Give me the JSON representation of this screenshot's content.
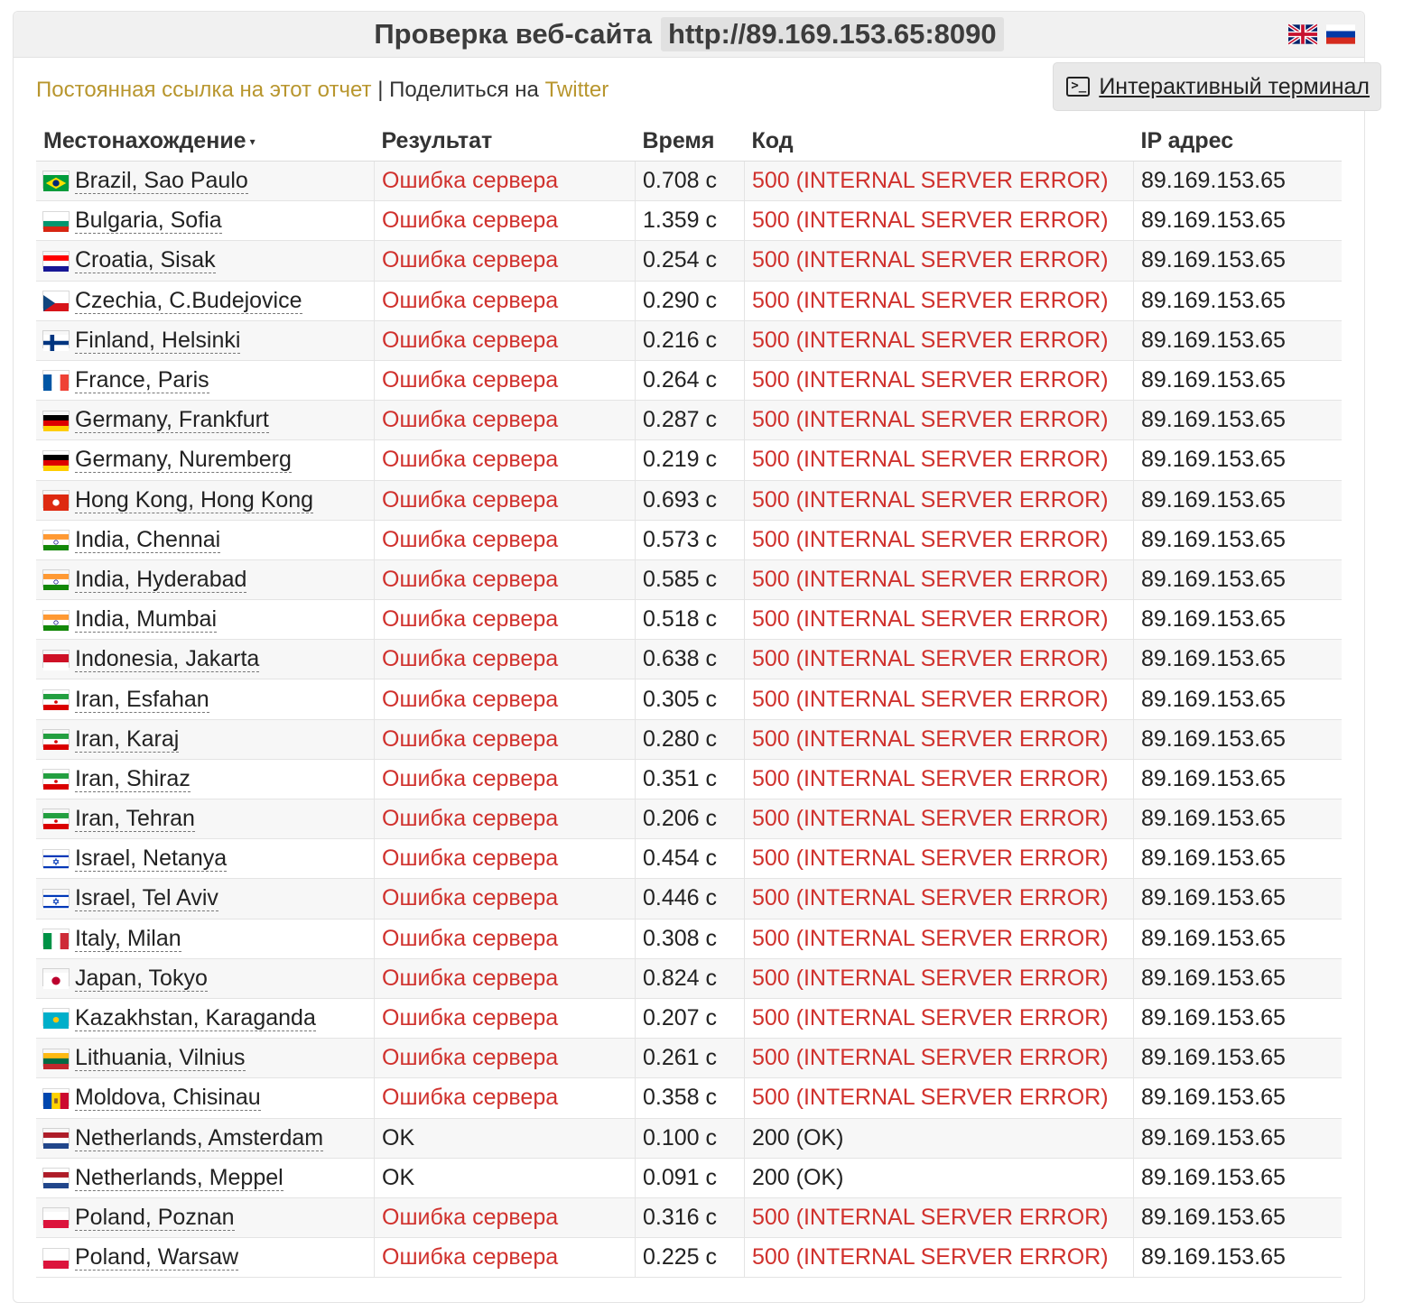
{
  "header": {
    "title": "Проверка веб-сайта",
    "url": "http://89.169.153.65:8090",
    "languages": [
      {
        "name": "English",
        "icon": "uk-flag-icon"
      },
      {
        "name": "Русский",
        "icon": "ru-flag-icon"
      }
    ]
  },
  "links": {
    "permalink": "Постоянная ссылка на этот отчет",
    "separator": " | ",
    "share_prefix": "Поделиться на ",
    "twitter": "Twitter"
  },
  "terminal_button": {
    "label": "Интерактивный терминал",
    "icon": "terminal-icon"
  },
  "table": {
    "columns": [
      "Местонахождение",
      "Результат",
      "Время",
      "Код",
      "IP адрес"
    ],
    "sort_indicator": "▾",
    "colors": {
      "error": "#d0312d",
      "ok": "#222222"
    },
    "rows": [
      {
        "location": "Brazil, Sao Paulo",
        "flag": "br",
        "result": "Ошибка сервера",
        "status": "error",
        "time": "0.708 с",
        "code": "500 (INTERNAL SERVER ERROR)",
        "ip": "89.169.153.65"
      },
      {
        "location": "Bulgaria, Sofia",
        "flag": "bg",
        "result": "Ошибка сервера",
        "status": "error",
        "time": "1.359 с",
        "code": "500 (INTERNAL SERVER ERROR)",
        "ip": "89.169.153.65"
      },
      {
        "location": "Croatia, Sisak",
        "flag": "hr",
        "result": "Ошибка сервера",
        "status": "error",
        "time": "0.254 с",
        "code": "500 (INTERNAL SERVER ERROR)",
        "ip": "89.169.153.65"
      },
      {
        "location": "Czechia, C.Budejovice",
        "flag": "cz",
        "result": "Ошибка сервера",
        "status": "error",
        "time": "0.290 с",
        "code": "500 (INTERNAL SERVER ERROR)",
        "ip": "89.169.153.65"
      },
      {
        "location": "Finland, Helsinki",
        "flag": "fi",
        "result": "Ошибка сервера",
        "status": "error",
        "time": "0.216 с",
        "code": "500 (INTERNAL SERVER ERROR)",
        "ip": "89.169.153.65"
      },
      {
        "location": "France, Paris",
        "flag": "fr",
        "result": "Ошибка сервера",
        "status": "error",
        "time": "0.264 с",
        "code": "500 (INTERNAL SERVER ERROR)",
        "ip": "89.169.153.65"
      },
      {
        "location": "Germany, Frankfurt",
        "flag": "de",
        "result": "Ошибка сервера",
        "status": "error",
        "time": "0.287 с",
        "code": "500 (INTERNAL SERVER ERROR)",
        "ip": "89.169.153.65"
      },
      {
        "location": "Germany, Nuremberg",
        "flag": "de",
        "result": "Ошибка сервера",
        "status": "error",
        "time": "0.219 с",
        "code": "500 (INTERNAL SERVER ERROR)",
        "ip": "89.169.153.65"
      },
      {
        "location": "Hong Kong, Hong Kong",
        "flag": "hk",
        "result": "Ошибка сервера",
        "status": "error",
        "time": "0.693 с",
        "code": "500 (INTERNAL SERVER ERROR)",
        "ip": "89.169.153.65"
      },
      {
        "location": "India, Chennai",
        "flag": "in",
        "result": "Ошибка сервера",
        "status": "error",
        "time": "0.573 с",
        "code": "500 (INTERNAL SERVER ERROR)",
        "ip": "89.169.153.65"
      },
      {
        "location": "India, Hyderabad",
        "flag": "in",
        "result": "Ошибка сервера",
        "status": "error",
        "time": "0.585 с",
        "code": "500 (INTERNAL SERVER ERROR)",
        "ip": "89.169.153.65"
      },
      {
        "location": "India, Mumbai",
        "flag": "in",
        "result": "Ошибка сервера",
        "status": "error",
        "time": "0.518 с",
        "code": "500 (INTERNAL SERVER ERROR)",
        "ip": "89.169.153.65"
      },
      {
        "location": "Indonesia, Jakarta",
        "flag": "id",
        "result": "Ошибка сервера",
        "status": "error",
        "time": "0.638 с",
        "code": "500 (INTERNAL SERVER ERROR)",
        "ip": "89.169.153.65"
      },
      {
        "location": "Iran, Esfahan",
        "flag": "ir",
        "result": "Ошибка сервера",
        "status": "error",
        "time": "0.305 с",
        "code": "500 (INTERNAL SERVER ERROR)",
        "ip": "89.169.153.65"
      },
      {
        "location": "Iran, Karaj",
        "flag": "ir",
        "result": "Ошибка сервера",
        "status": "error",
        "time": "0.280 с",
        "code": "500 (INTERNAL SERVER ERROR)",
        "ip": "89.169.153.65"
      },
      {
        "location": "Iran, Shiraz",
        "flag": "ir",
        "result": "Ошибка сервера",
        "status": "error",
        "time": "0.351 с",
        "code": "500 (INTERNAL SERVER ERROR)",
        "ip": "89.169.153.65"
      },
      {
        "location": "Iran, Tehran",
        "flag": "ir",
        "result": "Ошибка сервера",
        "status": "error",
        "time": "0.206 с",
        "code": "500 (INTERNAL SERVER ERROR)",
        "ip": "89.169.153.65"
      },
      {
        "location": "Israel, Netanya",
        "flag": "il",
        "result": "Ошибка сервера",
        "status": "error",
        "time": "0.454 с",
        "code": "500 (INTERNAL SERVER ERROR)",
        "ip": "89.169.153.65"
      },
      {
        "location": "Israel, Tel Aviv",
        "flag": "il",
        "result": "Ошибка сервера",
        "status": "error",
        "time": "0.446 с",
        "code": "500 (INTERNAL SERVER ERROR)",
        "ip": "89.169.153.65"
      },
      {
        "location": "Italy, Milan",
        "flag": "it",
        "result": "Ошибка сервера",
        "status": "error",
        "time": "0.308 с",
        "code": "500 (INTERNAL SERVER ERROR)",
        "ip": "89.169.153.65"
      },
      {
        "location": "Japan, Tokyo",
        "flag": "jp",
        "result": "Ошибка сервера",
        "status": "error",
        "time": "0.824 с",
        "code": "500 (INTERNAL SERVER ERROR)",
        "ip": "89.169.153.65"
      },
      {
        "location": "Kazakhstan, Karaganda",
        "flag": "kz",
        "result": "Ошибка сервера",
        "status": "error",
        "time": "0.207 с",
        "code": "500 (INTERNAL SERVER ERROR)",
        "ip": "89.169.153.65"
      },
      {
        "location": "Lithuania, Vilnius",
        "flag": "lt",
        "result": "Ошибка сервера",
        "status": "error",
        "time": "0.261 с",
        "code": "500 (INTERNAL SERVER ERROR)",
        "ip": "89.169.153.65"
      },
      {
        "location": "Moldova, Chisinau",
        "flag": "md",
        "result": "Ошибка сервера",
        "status": "error",
        "time": "0.358 с",
        "code": "500 (INTERNAL SERVER ERROR)",
        "ip": "89.169.153.65"
      },
      {
        "location": "Netherlands, Amsterdam",
        "flag": "nl",
        "result": "OK",
        "status": "ok",
        "time": "0.100 с",
        "code": "200 (OK)",
        "ip": "89.169.153.65"
      },
      {
        "location": "Netherlands, Meppel",
        "flag": "nl",
        "result": "OK",
        "status": "ok",
        "time": "0.091 с",
        "code": "200 (OK)",
        "ip": "89.169.153.65"
      },
      {
        "location": "Poland, Poznan",
        "flag": "pl",
        "result": "Ошибка сервера",
        "status": "error",
        "time": "0.316 с",
        "code": "500 (INTERNAL SERVER ERROR)",
        "ip": "89.169.153.65"
      },
      {
        "location": "Poland, Warsaw",
        "flag": "pl",
        "result": "Ошибка сервера",
        "status": "error",
        "time": "0.225 с",
        "code": "500 (INTERNAL SERVER ERROR)",
        "ip": "89.169.153.65"
      }
    ]
  }
}
